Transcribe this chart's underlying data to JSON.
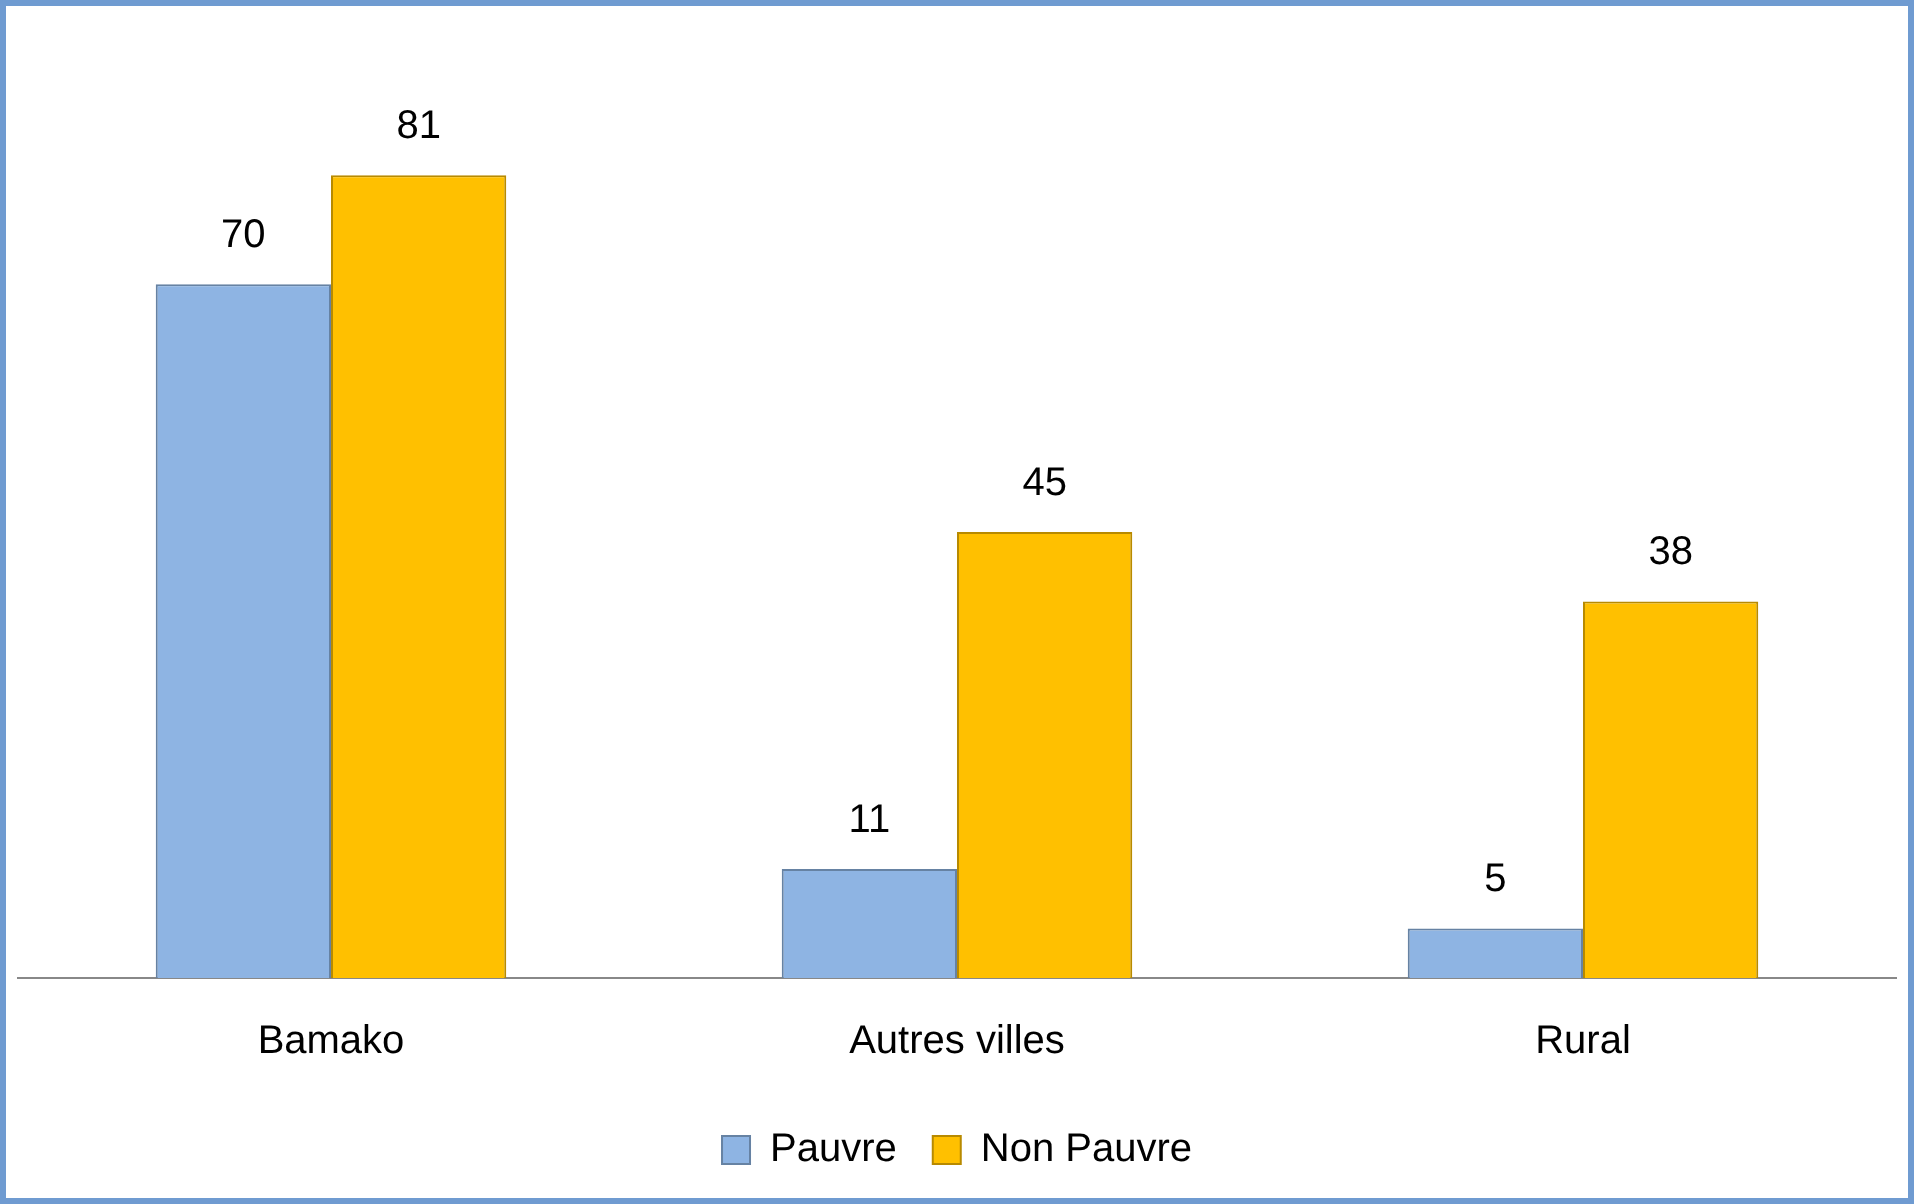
{
  "chart_data": {
    "type": "bar",
    "categories": [
      "Bamako",
      "Autres villes",
      "Rural"
    ],
    "series": [
      {
        "name": "Pauvre",
        "color": "#8eb4e3",
        "values": [
          70,
          11,
          5
        ]
      },
      {
        "name": "Non Pauvre",
        "color": "#ffc000",
        "values": [
          81,
          45,
          38
        ]
      }
    ],
    "data_labels": true,
    "legend": "bottom",
    "grid": false,
    "tick_labels": "x"
  }
}
